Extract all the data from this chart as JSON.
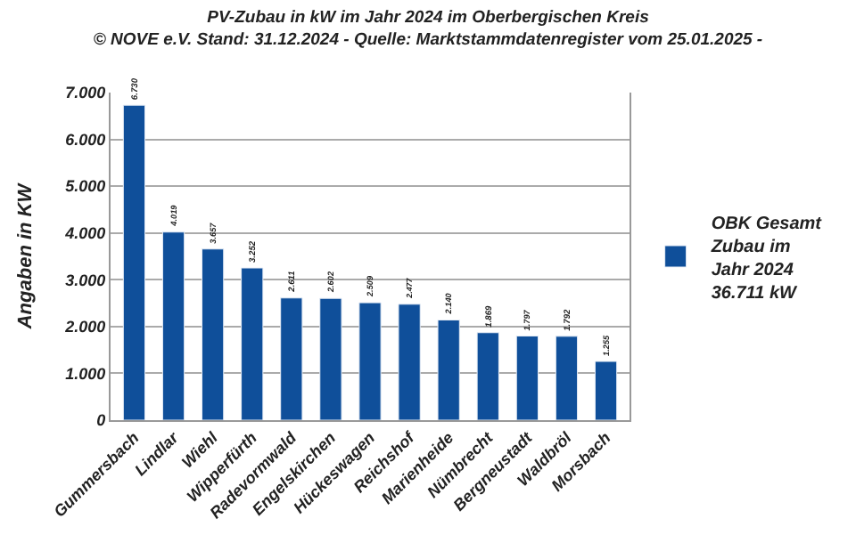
{
  "chart_data": {
    "type": "bar",
    "title": "PV-Zubau in kW im Jahr 2024 im Oberbergischen Kreis",
    "subtitle": "© NOVE e.V. Stand: 31.12.2024 - Quelle: Marktstammdatenregister vom 25.01.2025 -",
    "ylabel": "Angaben in KW",
    "categories": [
      "Gummersbach",
      "Lindlar",
      "Wiehl",
      "Wipperfürth",
      "Radevormwald",
      "Engelskirchen",
      "Hückeswagen",
      "Reichshof",
      "Marienheide",
      "Nümbrecht",
      "Bergneustadt",
      "Waldbröl",
      "Morsbach"
    ],
    "series": [
      {
        "name": "OBK Gesamt Zubau im Jahr 2024 36.711 kW",
        "color": "#0f4f9a",
        "values": [
          6730,
          4019,
          3657,
          3252,
          2611,
          2602,
          2509,
          2477,
          2140,
          1869,
          1797,
          1792,
          1255
        ],
        "value_labels": [
          "6.730",
          "4.019",
          "3.657",
          "3.252",
          "2.611",
          "2.602",
          "2.509",
          "2.477",
          "2.140",
          "1.869",
          "1.797",
          "1.792",
          "1.255"
        ]
      }
    ],
    "ylim": [
      0,
      7000
    ],
    "yticks": [
      {
        "value": 0,
        "label": "0"
      },
      {
        "value": 1000,
        "label": "1.000"
      },
      {
        "value": 2000,
        "label": "2.000"
      },
      {
        "value": 3000,
        "label": "3.000"
      },
      {
        "value": 4000,
        "label": "4.000"
      },
      {
        "value": 5000,
        "label": "5.000"
      },
      {
        "value": 6000,
        "label": "6.000"
      },
      {
        "value": 7000,
        "label": "7.000"
      }
    ],
    "grid": "y",
    "legend": "right"
  }
}
